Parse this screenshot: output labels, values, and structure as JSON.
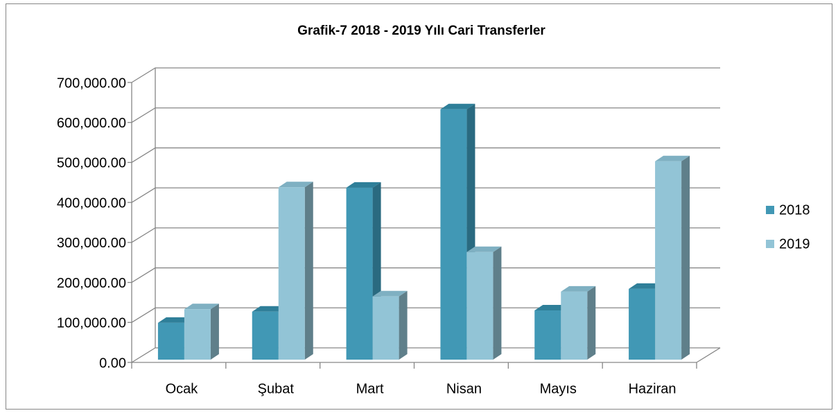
{
  "chart_data": {
    "type": "bar3d",
    "title": "Grafik-7 2018 - 2019 Yılı Cari Transferler",
    "categories": [
      "Ocak",
      "Şubat",
      "Mart",
      "Nisan",
      "Mayıs",
      "Haziran"
    ],
    "series": [
      {
        "name": "2018",
        "color": "#4198b5",
        "values": [
          92000,
          120000,
          430000,
          626000,
          123000,
          177000
        ]
      },
      {
        "name": "2019",
        "color": "#92c4d6",
        "values": [
          126000,
          431000,
          158000,
          269000,
          170000,
          496000
        ]
      }
    ],
    "ylim": [
      0,
      700000
    ],
    "yticks": [
      {
        "value": 0,
        "label": "0.00"
      },
      {
        "value": 100000,
        "label": "100,000.00"
      },
      {
        "value": 200000,
        "label": "200,000.00"
      },
      {
        "value": 300000,
        "label": "300,000.00"
      },
      {
        "value": 400000,
        "label": "400,000.00"
      },
      {
        "value": 500000,
        "label": "500,000.00"
      },
      {
        "value": 600000,
        "label": "600,000.00"
      },
      {
        "value": 700000,
        "label": "700,000.00"
      }
    ],
    "grid": true,
    "legend": "right"
  }
}
